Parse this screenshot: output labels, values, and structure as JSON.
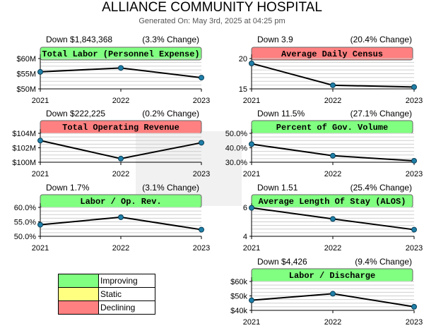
{
  "header": {
    "title": "ALLIANCE COMMUNITY HOSPITAL",
    "subtitle": "Generated On: May 3rd, 2025 at 04:25 pm"
  },
  "colors": {
    "improving": "#80ff80",
    "static": "#ffff80",
    "declining": "#ff8080",
    "line": "#000000",
    "marker": "#1f7fa8"
  },
  "legend": [
    {
      "label": "Improving",
      "status": "improving"
    },
    {
      "label": "Static",
      "status": "static"
    },
    {
      "label": "Declining",
      "status": "declining"
    }
  ],
  "chart_data": [
    {
      "type": "line",
      "title": "Total Labor (Personnel Expense)",
      "status": "improving",
      "change_text": "Down $1,843,368",
      "pct_text": "(3.3% Change)",
      "categories": [
        "2021",
        "2022",
        "2023"
      ],
      "values": [
        55.6,
        56.9,
        53.7
      ],
      "ylim": [
        50,
        60
      ],
      "yticks": [
        50,
        55,
        60
      ],
      "ytick_labels": [
        "$50M",
        "$55M",
        "$60M"
      ]
    },
    {
      "type": "line",
      "title": "Average Daily Census",
      "status": "declining",
      "change_text": "Down 3.9",
      "pct_text": "(20.4% Change)",
      "categories": [
        "2021",
        "2022",
        "2023"
      ],
      "values": [
        19.2,
        15.6,
        15.3
      ],
      "ylim": [
        15,
        20
      ],
      "yticks": [
        15,
        20
      ],
      "ytick_labels": [
        "15",
        "20"
      ]
    },
    {
      "type": "line",
      "title": "Total Operating Revenue",
      "status": "declining",
      "change_text": "Down $222,225",
      "pct_text": "(0.2% Change)",
      "categories": [
        "2021",
        "2022",
        "2023"
      ],
      "values": [
        103.0,
        100.5,
        102.7
      ],
      "ylim": [
        100,
        104
      ],
      "yticks": [
        100,
        102,
        104
      ],
      "ytick_labels": [
        "$100M",
        "$102M",
        "$104M"
      ]
    },
    {
      "type": "line",
      "title": "Percent of Gov. Volume",
      "status": "improving",
      "change_text": "Down 11.5%",
      "pct_text": "(27.1% Change)",
      "categories": [
        "2021",
        "2022",
        "2023"
      ],
      "values": [
        42.5,
        34.5,
        31.0
      ],
      "ylim": [
        30,
        50
      ],
      "yticks": [
        30,
        40,
        50
      ],
      "ytick_labels": [
        "30.0%",
        "40.0%",
        "50.0%"
      ]
    },
    {
      "type": "line",
      "title": "Labor / Op. Rev.",
      "status": "improving",
      "change_text": "Down 1.7%",
      "pct_text": "(3.1% Change)",
      "categories": [
        "2021",
        "2022",
        "2023"
      ],
      "values": [
        54.0,
        56.6,
        52.3
      ],
      "ylim": [
        50,
        60
      ],
      "yticks": [
        50,
        55,
        60
      ],
      "ytick_labels": [
        "50.0%",
        "55.0%",
        "60.0%"
      ]
    },
    {
      "type": "line",
      "title": "Average Length Of Stay (ALOS)",
      "status": "improving",
      "change_text": "Down 1.51",
      "pct_text": "(25.4% Change)",
      "categories": [
        "2021",
        "2022",
        "2023"
      ],
      "values": [
        5.97,
        5.2,
        4.46
      ],
      "ylim": [
        4,
        6
      ],
      "yticks": [
        4,
        6
      ],
      "ytick_labels": [
        "4",
        "6"
      ]
    },
    {
      "type": "line",
      "title": "Labor / Discharge",
      "status": "improving",
      "change_text": "Down $4,426",
      "pct_text": "(9.4% Change)",
      "categories": [
        "2021",
        "2022",
        "2023"
      ],
      "values": [
        47.0,
        51.5,
        42.5
      ],
      "ylim": [
        40,
        60
      ],
      "yticks": [
        40,
        50,
        60
      ],
      "ytick_labels": [
        "$40k",
        "$50k",
        "$60k"
      ]
    }
  ]
}
